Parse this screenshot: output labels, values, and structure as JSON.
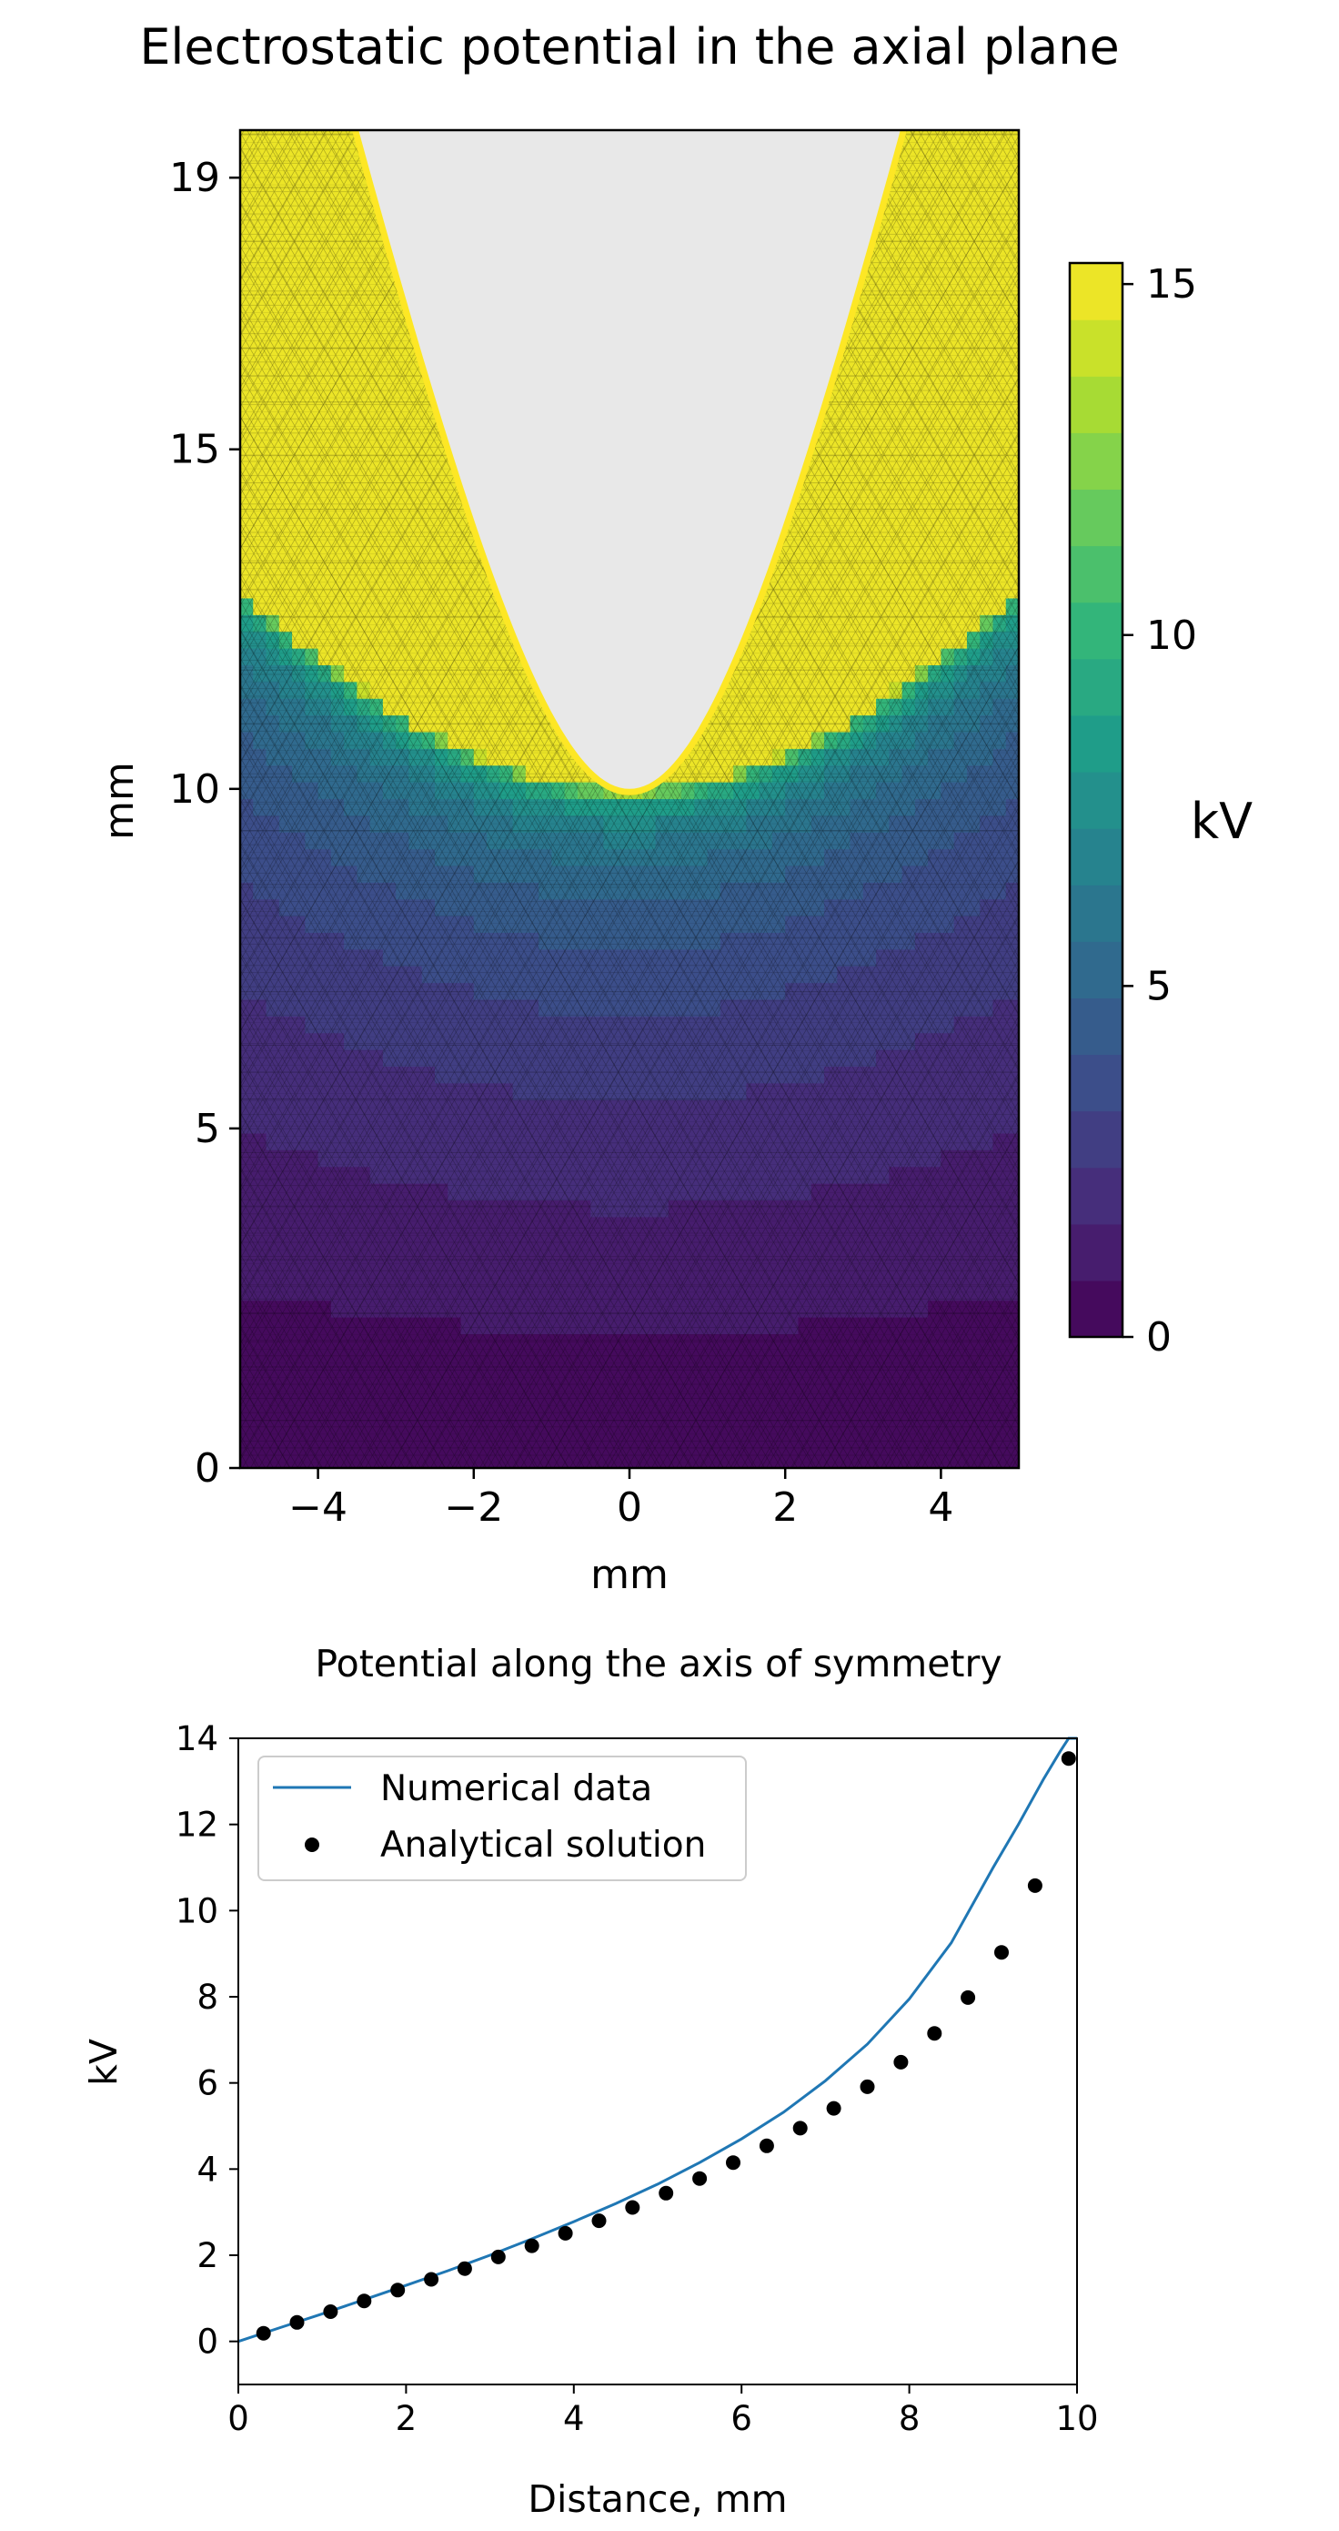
{
  "chart_data": [
    {
      "type": "heatmap",
      "title": "Electrostatic potential in the axial plane",
      "xlabel": "mm",
      "ylabel": "mm",
      "xlim": [
        -5,
        5
      ],
      "ylim": [
        0,
        19.7
      ],
      "xticks": [
        -4,
        -2,
        0,
        2,
        4
      ],
      "xtick_labels": [
        "−4",
        "−2",
        "0",
        "2",
        "4"
      ],
      "yticks": [
        0,
        5,
        10,
        15,
        19
      ],
      "ytick_labels": [
        "0",
        "5",
        "10",
        "15",
        "19"
      ],
      "electrode_tip": {
        "x": 0,
        "y": 10
      },
      "colorbar": {
        "label": "kV",
        "range": [
          0,
          15.3
        ],
        "ticks": [
          0,
          5,
          10,
          15
        ],
        "tick_labels": [
          "0",
          "5",
          "10",
          "15"
        ],
        "colormap": "viridis",
        "levels": 19
      },
      "grid": false
    },
    {
      "type": "line",
      "title": "Potential along the axis of symmetry",
      "xlabel": "Distance, mm",
      "ylabel": "kV",
      "xlim": [
        0,
        10
      ],
      "ylim": [
        -1,
        14
      ],
      "xticks": [
        0,
        2,
        4,
        6,
        8,
        10
      ],
      "yticks": [
        0,
        2,
        4,
        6,
        8,
        10,
        12,
        14
      ],
      "legend_position": "top-left",
      "series": [
        {
          "name": "Numerical data",
          "kind": "line",
          "color": "#1f77b4",
          "x": [
            0,
            0.5,
            1,
            1.5,
            2,
            2.5,
            3,
            3.5,
            4,
            4.5,
            5,
            5.5,
            6,
            6.5,
            7,
            7.5,
            8,
            8.5,
            9,
            9.3,
            9.6,
            9.8,
            9.9,
            10
          ],
          "y": [
            0.0,
            0.32,
            0.64,
            0.97,
            1.3,
            1.64,
            2.0,
            2.38,
            2.78,
            3.2,
            3.65,
            4.15,
            4.7,
            5.32,
            6.05,
            6.9,
            7.95,
            9.25,
            11.0,
            12.0,
            13.05,
            13.7,
            14.0,
            14.0
          ]
        },
        {
          "name": "Analytical solution",
          "kind": "scatter",
          "color": "#000000",
          "x": [
            0.3,
            0.7,
            1.1,
            1.5,
            1.9,
            2.3,
            2.7,
            3.1,
            3.5,
            3.9,
            4.3,
            4.7,
            5.1,
            5.5,
            5.9,
            6.3,
            6.7,
            7.1,
            7.5,
            7.9,
            8.3,
            8.7,
            9.1,
            9.5,
            9.9
          ],
          "y": [
            0.19,
            0.44,
            0.69,
            0.94,
            1.19,
            1.44,
            1.69,
            1.96,
            2.22,
            2.51,
            2.8,
            3.11,
            3.44,
            3.78,
            4.15,
            4.54,
            4.95,
            5.41,
            5.91,
            6.48,
            7.15,
            7.98,
            9.03,
            10.58,
            13.53
          ]
        }
      ]
    }
  ]
}
